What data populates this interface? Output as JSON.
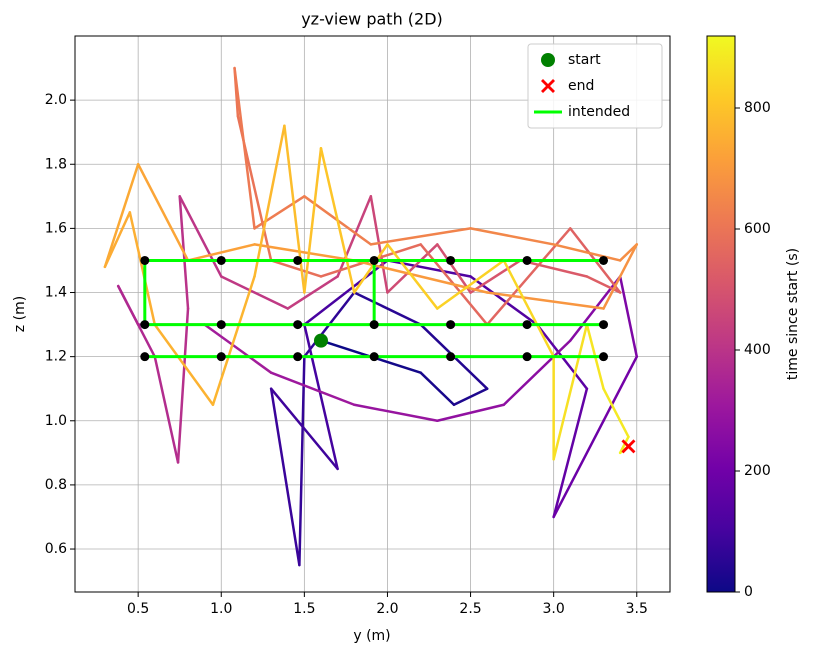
{
  "chart_data": {
    "type": "path",
    "title": "yz-view path (2D)",
    "x_label": "y (m)",
    "y_label": "z (m)",
    "xlim": [
      0.12,
      3.7
    ],
    "ylim": [
      0.466,
      2.2
    ],
    "xticks": [
      0.5,
      {
        "value": 1,
        "label": "1.0"
      },
      1.5,
      {
        "value": 2,
        "label": "2.0"
      },
      2.5,
      {
        "value": 3,
        "label": "3.0"
      },
      3.5
    ],
    "yticks": [
      0.6,
      0.8,
      {
        "value": 1,
        "label": "1.0"
      },
      1.2,
      1.4,
      1.6,
      1.8,
      {
        "value": 2,
        "label": "2.0"
      }
    ],
    "grid": true,
    "colorbar": {
      "label": "time since start (s)",
      "clim": [
        0,
        919
      ],
      "ticks": [
        0,
        200,
        400,
        600,
        800
      ],
      "colormap": [
        "#0d0887",
        "#46039f",
        "#7201a8",
        "#9c179e",
        "#bd3786",
        "#d8576b",
        "#ed7953",
        "#fb9f3a",
        "#fdca26",
        "#f0f921"
      ]
    },
    "path": {
      "y": [
        1.6,
        1.9,
        2.2,
        2.4,
        2.6,
        2.2,
        1.8,
        1.5,
        1.47,
        1.3,
        1.7,
        1.5,
        2.0,
        2.5,
        2.9,
        3.2,
        3.0,
        3.3,
        3.5,
        3.4,
        3.1,
        2.7,
        2.3,
        1.8,
        1.3,
        0.9,
        0.5,
        0.38,
        0.6,
        0.74,
        0.8,
        0.75,
        1.0,
        1.4,
        1.7,
        1.9,
        2.0,
        2.3,
        2.5,
        2.8,
        3.2,
        3.4,
        3.1,
        2.6,
        2.2,
        1.6,
        1.3,
        1.1,
        1.08,
        1.2,
        1.5,
        1.9,
        2.5,
        3.0,
        3.4,
        3.5,
        3.3,
        2.6,
        1.8,
        1.2,
        0.8,
        0.5,
        0.3,
        0.45,
        0.6,
        0.95,
        1.2,
        1.38,
        1.5,
        1.6,
        1.8,
        2.0,
        2.3,
        2.7,
        3.0,
        3.0,
        3.2,
        3.3,
        3.45,
        3.4,
        3.45
      ],
      "z": [
        1.25,
        1.2,
        1.15,
        1.05,
        1.1,
        1.3,
        1.4,
        1.2,
        0.55,
        1.1,
        0.85,
        1.3,
        1.5,
        1.45,
        1.3,
        1.1,
        0.7,
        1.0,
        1.2,
        1.45,
        1.25,
        1.05,
        1.0,
        1.05,
        1.15,
        1.3,
        1.3,
        1.42,
        1.2,
        0.87,
        1.35,
        1.7,
        1.45,
        1.35,
        1.45,
        1.7,
        1.4,
        1.55,
        1.4,
        1.5,
        1.45,
        1.4,
        1.6,
        1.3,
        1.55,
        1.45,
        1.5,
        1.95,
        2.1,
        1.6,
        1.7,
        1.55,
        1.6,
        1.55,
        1.5,
        1.55,
        1.35,
        1.4,
        1.5,
        1.55,
        1.5,
        1.8,
        1.48,
        1.65,
        1.3,
        1.05,
        1.45,
        1.92,
        1.4,
        1.85,
        1.4,
        1.55,
        1.35,
        1.5,
        1.2,
        0.88,
        1.3,
        1.1,
        0.95,
        0.9,
        0.92
      ],
      "t": [
        0,
        10,
        20,
        30,
        40,
        50,
        60,
        70,
        80,
        90,
        100,
        110,
        120,
        130,
        150,
        170,
        190,
        210,
        230,
        250,
        265,
        280,
        295,
        310,
        325,
        340,
        355,
        365,
        375,
        385,
        395,
        405,
        415,
        430,
        445,
        460,
        475,
        490,
        505,
        520,
        535,
        545,
        555,
        565,
        575,
        585,
        595,
        605,
        612,
        620,
        630,
        640,
        650,
        660,
        670,
        680,
        690,
        700,
        710,
        720,
        730,
        738,
        745,
        752,
        760,
        768,
        775,
        785,
        795,
        805,
        815,
        825,
        835,
        845,
        855,
        865,
        875,
        885,
        895,
        905,
        915
      ]
    },
    "intended": {
      "name": "intended",
      "color": "#00ff00",
      "y": [
        0.54,
        3.3,
        null,
        0.54,
        0.54,
        3.3,
        null,
        0.54,
        3.3,
        null,
        1.92,
        1.92
      ],
      "z": [
        1.5,
        1.5,
        null,
        1.5,
        1.3,
        1.3,
        null,
        1.2,
        1.2,
        null,
        1.5,
        1.3
      ]
    },
    "waypoints": {
      "color": "#000000",
      "y": [
        0.54,
        1.0,
        1.46,
        1.92,
        2.38,
        2.84,
        3.3,
        0.54,
        1.0,
        1.46,
        1.92,
        2.38,
        2.84,
        3.3,
        0.54,
        1.0,
        1.46,
        1.92,
        2.38,
        2.84,
        3.3
      ],
      "z": [
        1.5,
        1.5,
        1.5,
        1.5,
        1.5,
        1.5,
        1.5,
        1.3,
        1.3,
        1.3,
        1.3,
        1.3,
        1.3,
        1.3,
        1.2,
        1.2,
        1.2,
        1.2,
        1.2,
        1.2,
        1.2
      ]
    },
    "start": {
      "name": "start",
      "color": "#008000",
      "y": 1.6,
      "z": 1.25
    },
    "end": {
      "name": "end",
      "color": "#ff0000",
      "y": 3.45,
      "z": 0.92
    },
    "legend": "upper right"
  }
}
